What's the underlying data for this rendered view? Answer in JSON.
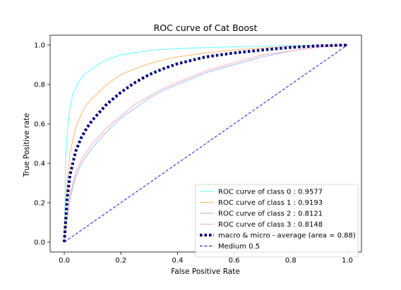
{
  "chart_data": {
    "type": "line",
    "title": "ROC curve of Cat Boost",
    "xlabel": "False Positive Rate",
    "ylabel": "True Positive rate",
    "xlim": [
      -0.05,
      1.05
    ],
    "ylim": [
      -0.05,
      1.05
    ],
    "xticks": [
      0.0,
      0.2,
      0.4,
      0.6,
      0.8,
      1.0
    ],
    "yticks": [
      0.0,
      0.2,
      0.4,
      0.6,
      0.8,
      1.0
    ],
    "xtick_labels": [
      "0.0",
      "0.2",
      "0.4",
      "0.6",
      "0.8",
      "1.0"
    ],
    "ytick_labels": [
      "0.0",
      "0.2",
      "0.4",
      "0.6",
      "0.8",
      "1.0"
    ],
    "grid": false,
    "legend_position": "bottom-right",
    "series": [
      {
        "name": "ROC curve of class 0 : 0.9577",
        "color": "#7fffff",
        "style": "solid",
        "x": [
          0.0,
          0.005,
          0.01,
          0.02,
          0.03,
          0.05,
          0.07,
          0.1,
          0.13,
          0.16,
          0.2,
          0.25,
          0.3,
          0.35,
          0.4,
          0.5,
          0.6,
          0.7,
          0.8,
          0.9,
          1.0
        ],
        "y": [
          0.0,
          0.42,
          0.55,
          0.68,
          0.75,
          0.81,
          0.85,
          0.88,
          0.91,
          0.93,
          0.95,
          0.962,
          0.972,
          0.978,
          0.982,
          0.987,
          0.991,
          0.994,
          0.997,
          0.999,
          1.0
        ]
      },
      {
        "name": "ROC curve of class 1 : 0.9193",
        "color": "#ffc080",
        "style": "solid",
        "x": [
          0.0,
          0.005,
          0.01,
          0.02,
          0.04,
          0.06,
          0.08,
          0.1,
          0.15,
          0.2,
          0.25,
          0.3,
          0.35,
          0.4,
          0.5,
          0.6,
          0.7,
          0.8,
          0.9,
          1.0
        ],
        "y": [
          0.0,
          0.2,
          0.3,
          0.45,
          0.58,
          0.65,
          0.7,
          0.73,
          0.8,
          0.85,
          0.88,
          0.905,
          0.925,
          0.94,
          0.96,
          0.975,
          0.985,
          0.992,
          0.997,
          1.0
        ]
      },
      {
        "name": "ROC curve of class 2 : 0.8121",
        "color": "#b0c4f0",
        "style": "solid",
        "x": [
          0.0,
          0.01,
          0.02,
          0.04,
          0.06,
          0.08,
          0.1,
          0.15,
          0.2,
          0.25,
          0.3,
          0.35,
          0.4,
          0.5,
          0.6,
          0.7,
          0.8,
          0.9,
          1.0
        ],
        "y": [
          0.0,
          0.12,
          0.22,
          0.33,
          0.4,
          0.44,
          0.48,
          0.56,
          0.63,
          0.68,
          0.73,
          0.77,
          0.8,
          0.86,
          0.9,
          0.94,
          0.97,
          0.99,
          1.0
        ]
      },
      {
        "name": "ROC curve of class 3 : 0.8148",
        "color": "#f8b8c8",
        "style": "solid",
        "x": [
          0.0,
          0.01,
          0.02,
          0.04,
          0.06,
          0.08,
          0.1,
          0.15,
          0.2,
          0.25,
          0.3,
          0.35,
          0.4,
          0.5,
          0.6,
          0.7,
          0.8,
          0.9,
          1.0
        ],
        "y": [
          0.0,
          0.14,
          0.24,
          0.35,
          0.42,
          0.46,
          0.5,
          0.58,
          0.64,
          0.7,
          0.74,
          0.78,
          0.81,
          0.87,
          0.91,
          0.95,
          0.97,
          0.99,
          1.0
        ]
      },
      {
        "name": "macro & micro - average (area = 0.88)",
        "color": "#000080",
        "style": "dotted",
        "x": [
          0.0,
          0.01,
          0.02,
          0.04,
          0.06,
          0.08,
          0.1,
          0.15,
          0.2,
          0.25,
          0.3,
          0.35,
          0.4,
          0.5,
          0.6,
          0.7,
          0.8,
          0.9,
          1.0
        ],
        "y": [
          0.0,
          0.22,
          0.34,
          0.46,
          0.53,
          0.58,
          0.62,
          0.7,
          0.76,
          0.81,
          0.85,
          0.88,
          0.905,
          0.94,
          0.96,
          0.975,
          0.988,
          0.996,
          1.0
        ]
      },
      {
        "name": "Medium 0.5",
        "color": "#0000cc",
        "style": "dashed",
        "x": [
          0.0,
          1.0
        ],
        "y": [
          0.0,
          1.0
        ]
      }
    ]
  }
}
